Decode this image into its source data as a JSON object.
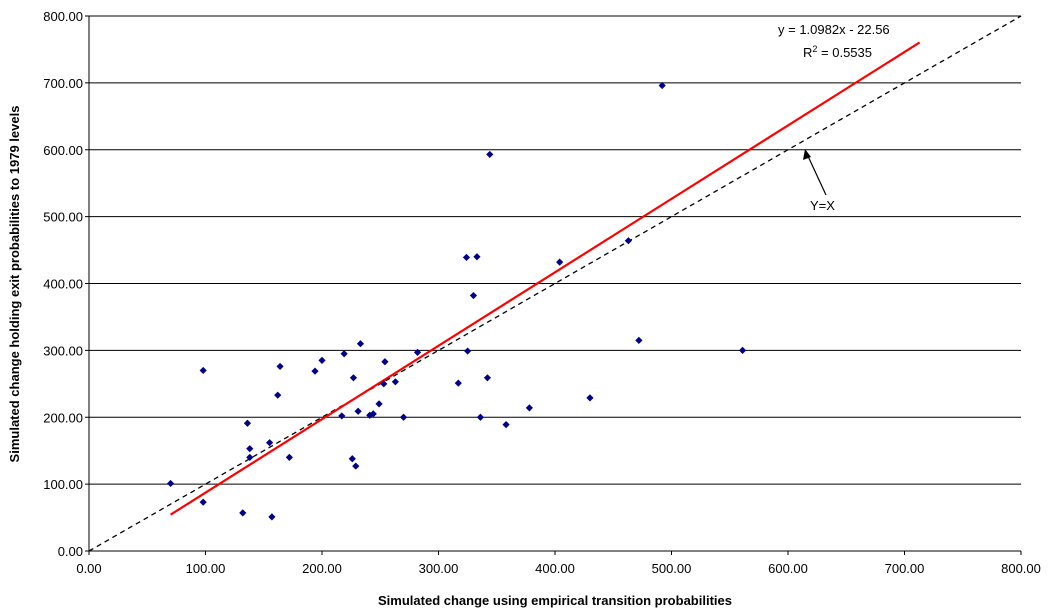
{
  "chart_data": {
    "type": "scatter",
    "xlabel": "Simulated change using empirical transition probabilities",
    "ylabel": "Simulated change holding exit probabilities to 1979 levels",
    "xlim": [
      0,
      800
    ],
    "ylim": [
      0,
      800
    ],
    "x_ticks": [
      "0.00",
      "100.00",
      "200.00",
      "300.00",
      "400.00",
      "500.00",
      "600.00",
      "700.00",
      "800.00"
    ],
    "y_ticks": [
      "0.00",
      "100.00",
      "200.00",
      "300.00",
      "400.00",
      "500.00",
      "600.00",
      "700.00",
      "800.00"
    ],
    "grid": "horizontal",
    "marker_color": "#00008b",
    "points": [
      {
        "x": 70,
        "y": 101
      },
      {
        "x": 98,
        "y": 270
      },
      {
        "x": 98,
        "y": 73
      },
      {
        "x": 132,
        "y": 57
      },
      {
        "x": 136,
        "y": 191
      },
      {
        "x": 138,
        "y": 153
      },
      {
        "x": 138,
        "y": 140
      },
      {
        "x": 155,
        "y": 162
      },
      {
        "x": 157,
        "y": 51
      },
      {
        "x": 162,
        "y": 233
      },
      {
        "x": 164,
        "y": 276
      },
      {
        "x": 172,
        "y": 140
      },
      {
        "x": 194,
        "y": 269
      },
      {
        "x": 200,
        "y": 285
      },
      {
        "x": 217,
        "y": 202
      },
      {
        "x": 219,
        "y": 295
      },
      {
        "x": 226,
        "y": 138
      },
      {
        "x": 227,
        "y": 259
      },
      {
        "x": 229,
        "y": 127
      },
      {
        "x": 231,
        "y": 209
      },
      {
        "x": 233,
        "y": 310
      },
      {
        "x": 241,
        "y": 203
      },
      {
        "x": 244,
        "y": 205
      },
      {
        "x": 249,
        "y": 220
      },
      {
        "x": 253,
        "y": 250
      },
      {
        "x": 254,
        "y": 283
      },
      {
        "x": 263,
        "y": 253
      },
      {
        "x": 270,
        "y": 200
      },
      {
        "x": 282,
        "y": 297
      },
      {
        "x": 317,
        "y": 251
      },
      {
        "x": 324,
        "y": 439
      },
      {
        "x": 325,
        "y": 299
      },
      {
        "x": 330,
        "y": 382
      },
      {
        "x": 333,
        "y": 440
      },
      {
        "x": 336,
        "y": 200
      },
      {
        "x": 342,
        "y": 259
      },
      {
        "x": 344,
        "y": 593
      },
      {
        "x": 358,
        "y": 189
      },
      {
        "x": 378,
        "y": 214
      },
      {
        "x": 404,
        "y": 432
      },
      {
        "x": 430,
        "y": 229
      },
      {
        "x": 463,
        "y": 464
      },
      {
        "x": 472,
        "y": 315
      },
      {
        "x": 492,
        "y": 696
      },
      {
        "x": 561,
        "y": 300
      }
    ],
    "trendline": {
      "slope": 1.0982,
      "intercept": -22.56,
      "x_range": [
        70,
        713
      ],
      "color": "#ff0000"
    },
    "identity_line": {
      "x_range": [
        0,
        800
      ],
      "style": "dashed",
      "color": "#000000"
    },
    "annotations": {
      "equation": "y = 1.0982x - 22.56",
      "r2_prefix": "R",
      "r2_sup": "2",
      "r2_suffix": " = 0.5535",
      "identity_label": "Y=X"
    }
  }
}
